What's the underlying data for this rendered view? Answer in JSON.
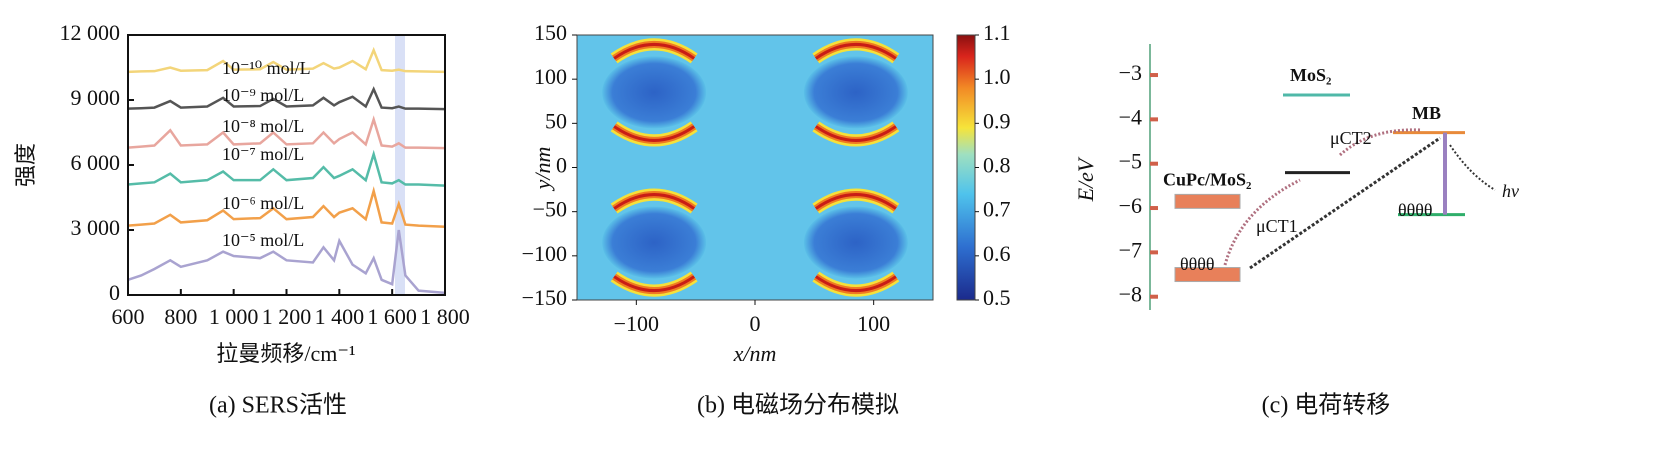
{
  "chart_data": [
    {
      "type": "line",
      "ylabel": "强度",
      "xlabel": "拉曼频移/cm⁻¹",
      "caption": "(a) SERS活性",
      "xlim": [
        600,
        1800
      ],
      "ylim": [
        0,
        12000
      ],
      "xticks": [
        600,
        800,
        {
          "value": 1000,
          "label": "1 000"
        },
        {
          "value": 1200,
          "label": "1 200"
        },
        {
          "value": 1400,
          "label": "1 400"
        },
        {
          "value": 1600,
          "label": "1 600"
        },
        {
          "value": 1800,
          "label": "1 800"
        }
      ],
      "yticks": [
        0,
        {
          "value": 3000,
          "label": "3 000"
        },
        {
          "value": 6000,
          "label": "6 000"
        },
        {
          "value": 9000,
          "label": "9 000"
        },
        {
          "value": 12000,
          "label": "12 000"
        }
      ],
      "x": [
        600,
        650,
        700,
        760,
        800,
        900,
        960,
        1000,
        1100,
        1150,
        1200,
        1300,
        1340,
        1380,
        1400,
        1450,
        1500,
        1530,
        1560,
        1600,
        1625,
        1650,
        1700,
        1800
      ],
      "series": [
        {
          "name": "10⁻¹⁰ mol/L",
          "color": "#f3d57a",
          "values": [
            10300,
            10320,
            10330,
            10500,
            10350,
            10380,
            10800,
            10400,
            10420,
            10750,
            10400,
            10450,
            10700,
            10450,
            10500,
            10800,
            10420,
            11300,
            10380,
            10350,
            10400,
            10330,
            10320,
            10300
          ]
        },
        {
          "name": "10⁻⁹ mol/L",
          "color": "#555555",
          "values": [
            8600,
            8620,
            8650,
            8950,
            8650,
            8700,
            9100,
            8700,
            8720,
            9050,
            8700,
            8750,
            9100,
            8750,
            8900,
            9150,
            8700,
            9500,
            8650,
            8620,
            8700,
            8600,
            8600,
            8580
          ]
        },
        {
          "name": "10⁻⁸ mol/L",
          "color": "#e8a69e",
          "values": [
            6800,
            6850,
            6900,
            7600,
            6900,
            6950,
            7500,
            6950,
            7000,
            7500,
            6950,
            7000,
            7500,
            7000,
            7200,
            7500,
            6950,
            8100,
            6900,
            6850,
            7000,
            6800,
            6800,
            6780
          ]
        },
        {
          "name": "10⁻⁷ mol/L",
          "color": "#55bca8",
          "values": [
            5100,
            5150,
            5200,
            5600,
            5200,
            5300,
            5700,
            5300,
            5300,
            5800,
            5300,
            5400,
            5900,
            5400,
            5500,
            5800,
            5300,
            6500,
            5200,
            5150,
            5300,
            5100,
            5100,
            5050
          ]
        },
        {
          "name": "10⁻⁶ mol/L",
          "color": "#f2a04a",
          "values": [
            3200,
            3250,
            3300,
            3700,
            3350,
            3450,
            3900,
            3500,
            3550,
            4000,
            3500,
            3600,
            4100,
            3600,
            3800,
            4000,
            3500,
            4800,
            3350,
            3300,
            4200,
            3250,
            3200,
            3150
          ]
        },
        {
          "name": "10⁻⁵ mol/L",
          "color": "#a9a3d0",
          "values": [
            700,
            900,
            1200,
            1600,
            1300,
            1600,
            2000,
            1800,
            1700,
            2000,
            1600,
            1500,
            2200,
            1600,
            2500,
            1400,
            1000,
            1700,
            700,
            500,
            3000,
            900,
            200,
            100
          ]
        }
      ]
    },
    {
      "type": "heatmap",
      "ylabel": "y/nm",
      "xlabel": "x/nm",
      "caption": "(b) 电磁场分布模拟",
      "xlim": [
        -150,
        150
      ],
      "ylim": [
        -150,
        150
      ],
      "xticks": [
        {
          "value": -100,
          "label": "−100"
        },
        0,
        100
      ],
      "yticks": [
        {
          "value": -150,
          "label": "−150"
        },
        {
          "value": -100,
          "label": "−100"
        },
        {
          "value": -50,
          "label": "−50"
        },
        0,
        50,
        100,
        150
      ],
      "hotspots": [
        {
          "x": -85,
          "y": 85
        },
        {
          "x": 85,
          "y": 85
        },
        {
          "x": -85,
          "y": -85
        },
        {
          "x": 85,
          "y": -85
        }
      ],
      "colorbar": {
        "lim": [
          0.5,
          1.1
        ],
        "ticks": [
          0.5,
          0.6,
          0.7,
          0.8,
          0.9,
          {
            "value": 1,
            "label": "1.0"
          },
          1.1
        ]
      }
    },
    {
      "type": "energy-diagram",
      "ylabel": "E/eV",
      "caption": "(c) 电荷转移",
      "ylim": [
        -8.3,
        -2.3
      ],
      "yticks": [
        {
          "value": -3,
          "label": "−3"
        },
        {
          "value": -4,
          "label": "−4"
        },
        {
          "value": -5,
          "label": "−5"
        },
        {
          "value": -6,
          "label": "−6"
        },
        {
          "value": -7,
          "label": "−7"
        },
        {
          "value": -8,
          "label": "−8"
        }
      ],
      "levels": [
        {
          "label": "MoS₂",
          "value": -3.45
        },
        {
          "label": "MB",
          "value": -4.3
        },
        {
          "value": -5.2
        },
        {
          "label": "CuPc/MoS₂",
          "value": -5.85
        },
        {
          "value": -6.15
        },
        {
          "value": -7.5
        }
      ],
      "annotations": [
        "μCT2",
        "μCT1",
        "hν",
        "θθθθ",
        "θθθθ"
      ]
    }
  ]
}
